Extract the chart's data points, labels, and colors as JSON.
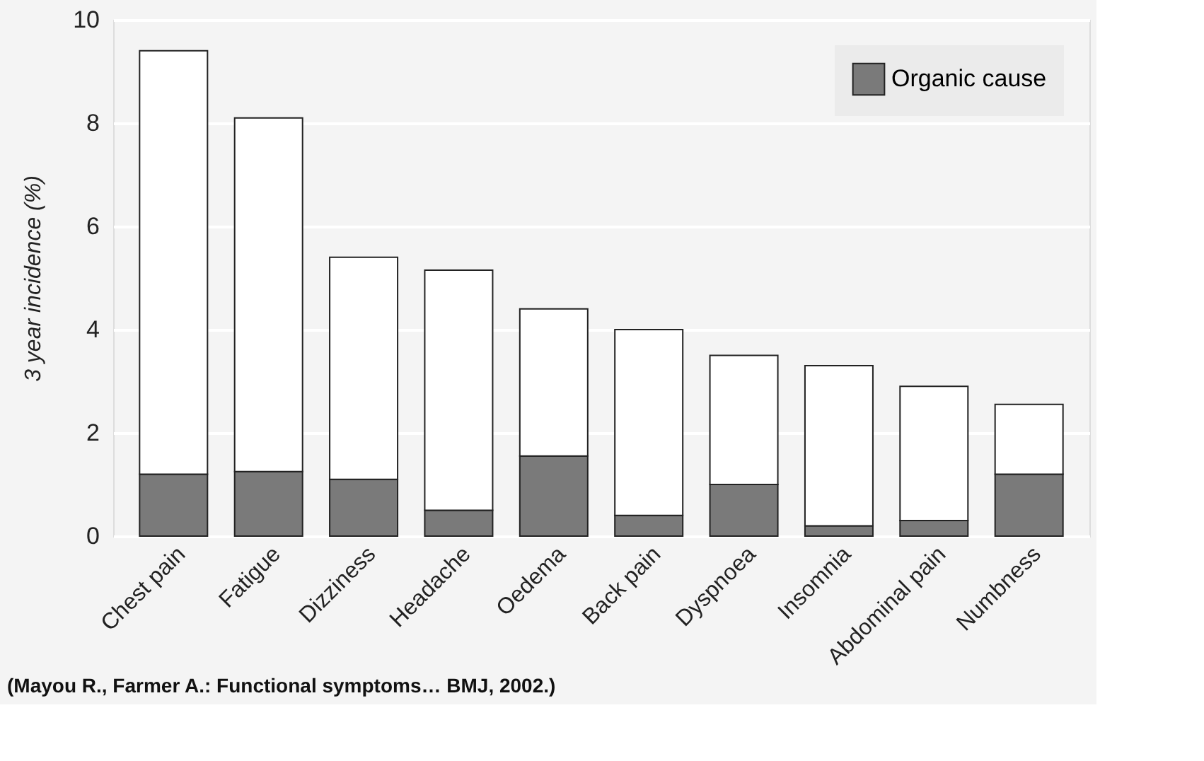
{
  "chart_data": {
    "type": "bar",
    "stacked": true,
    "ylabel": "3 year incidence (%)",
    "categories": [
      "Chest pain",
      "Fatigue",
      "Dizziness",
      "Headache",
      "Oedema",
      "Back pain",
      "Dyspnoea",
      "Insomnia",
      "Abdominal pain",
      "Numbness"
    ],
    "series": [
      {
        "name": "Organic cause",
        "color": "#7a7a7a",
        "values": [
          1.2,
          1.25,
          1.1,
          0.5,
          1.55,
          0.4,
          1.0,
          0.2,
          0.3,
          1.2
        ]
      },
      {
        "color": "#ffffff",
        "values": [
          8.2,
          6.85,
          4.3,
          4.65,
          2.85,
          3.6,
          2.5,
          3.1,
          2.6,
          1.35
        ]
      }
    ],
    "ylim": [
      0,
      10
    ],
    "yticks": [
      0,
      2,
      4,
      6,
      8,
      10
    ],
    "grid": "y",
    "legend": "top right",
    "annotations": [
      "(Mayou R., Farmer A.: Functional symptoms…  BMJ, 2002.)"
    ]
  }
}
